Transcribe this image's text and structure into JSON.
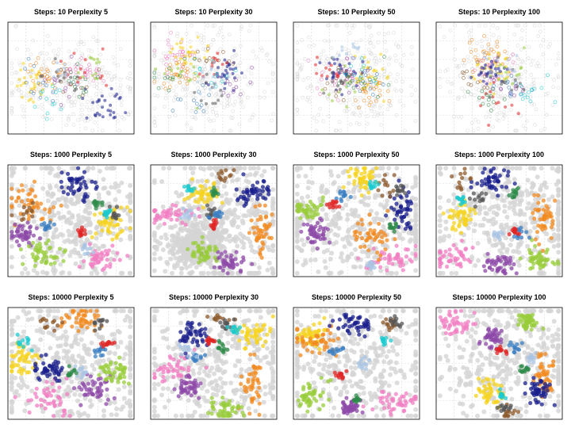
{
  "chart_data": {
    "type": "scatter",
    "layout": "3x4 grid of t-SNE embedding scatter plots",
    "grid": true,
    "axes_ticks_shown": false,
    "colors": {
      "background_points": "#d4d4d4",
      "pink": "#f27dc2",
      "gold": "#f5d31d",
      "orange": "#f2891f",
      "navy": "#1a1f8c",
      "purple": "#8e4aa8",
      "lime": "#98cc3a",
      "brown": "#8c5a2b",
      "dark_gray": "#555555",
      "steel_blue": "#3a7dc2",
      "red": "#e02424",
      "cyan": "#1cc9cf",
      "light_blue": "#a9c4e3",
      "green": "#2e8b4a"
    },
    "panels": [
      {
        "title": "Steps: 10 Perplexity 5",
        "steps": 10,
        "perplexity": 5
      },
      {
        "title": "Steps: 10 Perplexity 30",
        "steps": 10,
        "perplexity": 30
      },
      {
        "title": "Steps: 10 Perplexity 50",
        "steps": 10,
        "perplexity": 50
      },
      {
        "title": "Steps: 10 Perplexity 100",
        "steps": 10,
        "perplexity": 100
      },
      {
        "title": "Steps: 1000 Perplexity 5",
        "steps": 1000,
        "perplexity": 5
      },
      {
        "title": "Steps: 1000 Perplexity 30",
        "steps": 1000,
        "perplexity": 30
      },
      {
        "title": "Steps: 1000 Perplexity 50",
        "steps": 1000,
        "perplexity": 50
      },
      {
        "title": "Steps: 1000 Perplexity 100",
        "steps": 1000,
        "perplexity": 100
      },
      {
        "title": "Steps: 10000 Perplexity 5",
        "steps": 10000,
        "perplexity": 5
      },
      {
        "title": "Steps: 10000 Perplexity 30",
        "steps": 10000,
        "perplexity": 30
      },
      {
        "title": "Steps: 10000 Perplexity 50",
        "steps": 10000,
        "perplexity": 50
      },
      {
        "title": "Steps: 10000 Perplexity 100",
        "steps": 10000,
        "perplexity": 100
      }
    ]
  }
}
